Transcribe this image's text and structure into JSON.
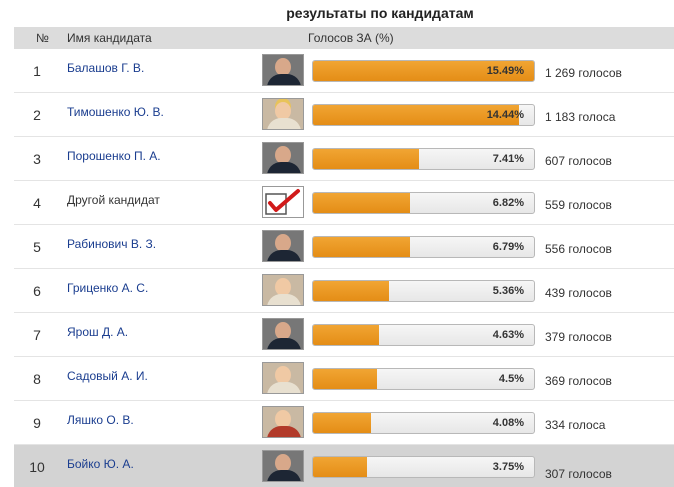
{
  "title": "результаты по кандидатам",
  "header": {
    "col_no": "№",
    "col_name": "Имя кандидата",
    "col_votes": "Голосов ЗА (%)"
  },
  "colors": {
    "bar_fill": "#e8951c",
    "link": "#1a3d8f",
    "header_bg": "#dcdcdc",
    "highlight_row": "#d3d3d3"
  },
  "candidates": [
    {
      "no": "1",
      "name": "Балашов Г. В.",
      "percent_label": "15.49%",
      "percent": 15.49,
      "votes": "1 269 голосов",
      "photo": "candidate-photo"
    },
    {
      "no": "2",
      "name": "Тимошенко Ю. В.",
      "percent_label": "14.44%",
      "percent": 14.44,
      "votes": "1 183 голоса",
      "photo": "candidate-photo"
    },
    {
      "no": "3",
      "name": "Порошенко П. А.",
      "percent_label": "7.41%",
      "percent": 7.41,
      "votes": "607 голосов",
      "photo": "candidate-photo"
    },
    {
      "no": "4",
      "name": "Другой кандидат",
      "percent_label": "6.82%",
      "percent": 6.82,
      "votes": "559 голосов",
      "photo": "checkmark-icon"
    },
    {
      "no": "5",
      "name": "Рабинович В. З.",
      "percent_label": "6.79%",
      "percent": 6.79,
      "votes": "556 голосов",
      "photo": "candidate-photo"
    },
    {
      "no": "6",
      "name": "Гриценко А. С.",
      "percent_label": "5.36%",
      "percent": 5.36,
      "votes": "439 голосов",
      "photo": "candidate-photo"
    },
    {
      "no": "7",
      "name": "Ярош Д. А.",
      "percent_label": "4.63%",
      "percent": 4.63,
      "votes": "379 голосов",
      "photo": "candidate-photo"
    },
    {
      "no": "8",
      "name": "Садовый А. И.",
      "percent_label": "4.5%",
      "percent": 4.5,
      "votes": "369 голосов",
      "photo": "candidate-photo"
    },
    {
      "no": "9",
      "name": "Ляшко О. В.",
      "percent_label": "4.08%",
      "percent": 4.08,
      "votes": "334 голоса",
      "photo": "candidate-photo"
    },
    {
      "no": "10",
      "name": "Бойко Ю. А.",
      "percent_label": "3.75%",
      "percent": 3.75,
      "votes": "307 голосов",
      "photo": "candidate-photo"
    }
  ]
}
